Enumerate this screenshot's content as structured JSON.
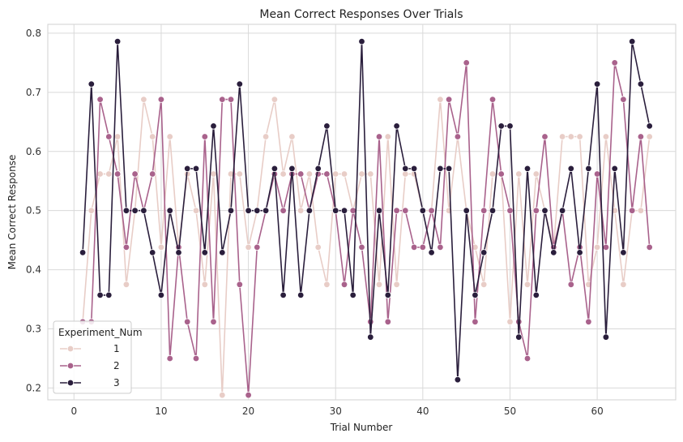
{
  "chart_data": {
    "type": "line",
    "title": "Mean Correct Responses Over Trials",
    "xlabel": "Trial Number",
    "ylabel": "Mean Correct Response",
    "xlim": [
      -3,
      69
    ],
    "ylim": [
      0.18,
      0.815
    ],
    "xticks": [
      0,
      10,
      20,
      30,
      40,
      50,
      60
    ],
    "yticks": [
      0.2,
      0.3,
      0.4,
      0.5,
      0.6,
      0.7,
      0.8
    ],
    "grid": true,
    "legend": {
      "title": "Experiment_Num",
      "placement": "bottom-left"
    },
    "x": [
      1,
      2,
      3,
      4,
      5,
      6,
      7,
      8,
      9,
      10,
      11,
      12,
      13,
      14,
      15,
      16,
      17,
      18,
      19,
      20,
      21,
      22,
      23,
      24,
      25,
      26,
      27,
      28,
      29,
      30,
      31,
      32,
      33,
      34,
      35,
      36,
      37,
      38,
      39,
      40,
      41,
      42,
      43,
      44,
      45,
      46,
      47,
      48,
      49,
      50,
      51,
      52,
      53,
      54,
      55,
      56,
      57,
      58,
      59,
      60,
      61,
      62,
      63,
      64,
      65,
      66
    ],
    "series": [
      {
        "name": "1",
        "color": "#e8cdc7",
        "values": [
          0.312,
          0.5,
          0.562,
          0.562,
          0.625,
          0.375,
          0.5,
          0.688,
          0.625,
          0.438,
          0.625,
          0.438,
          0.562,
          0.5,
          0.375,
          0.562,
          0.188,
          0.562,
          0.562,
          0.438,
          0.5,
          0.625,
          0.688,
          0.562,
          0.625,
          0.5,
          0.562,
          0.438,
          0.375,
          0.562,
          0.562,
          0.5,
          0.562,
          0.562,
          0.375,
          0.625,
          0.375,
          0.562,
          0.562,
          0.5,
          0.5,
          0.688,
          0.5,
          0.625,
          0.5,
          0.438,
          0.375,
          0.562,
          0.562,
          0.312,
          0.562,
          0.375,
          0.562,
          0.5,
          0.438,
          0.625,
          0.625,
          0.625,
          0.375,
          0.438,
          0.625,
          0.5,
          0.375,
          0.5,
          0.5,
          0.625
        ]
      },
      {
        "name": "2",
        "color": "#a9628c",
        "values": [
          0.312,
          0.312,
          0.688,
          0.625,
          0.562,
          0.438,
          0.562,
          0.5,
          0.562,
          0.688,
          0.25,
          0.438,
          0.312,
          0.25,
          0.625,
          0.312,
          0.688,
          0.688,
          0.375,
          0.188,
          0.438,
          0.5,
          0.562,
          0.5,
          0.562,
          0.562,
          0.5,
          0.562,
          0.562,
          0.5,
          0.375,
          0.5,
          0.438,
          0.312,
          0.625,
          0.312,
          0.5,
          0.5,
          0.438,
          0.438,
          0.5,
          0.438,
          0.688,
          0.625,
          0.75,
          0.312,
          0.5,
          0.688,
          0.562,
          0.5,
          0.312,
          0.25,
          0.5,
          0.625,
          0.438,
          0.5,
          0.375,
          0.438,
          0.312,
          0.562,
          0.438,
          0.75,
          0.688,
          0.5,
          0.625,
          0.438
        ]
      },
      {
        "name": "3",
        "color": "#2a1e3c",
        "values": [
          0.429,
          0.714,
          0.357,
          0.357,
          0.786,
          0.5,
          0.5,
          0.5,
          0.429,
          0.357,
          0.5,
          0.429,
          0.571,
          0.571,
          0.429,
          0.643,
          0.429,
          0.5,
          0.714,
          0.5,
          0.5,
          0.5,
          0.571,
          0.357,
          0.571,
          0.357,
          0.5,
          0.571,
          0.643,
          0.5,
          0.5,
          0.357,
          0.786,
          0.286,
          0.5,
          0.357,
          0.643,
          0.571,
          0.571,
          0.5,
          0.429,
          0.571,
          0.571,
          0.214,
          0.5,
          0.357,
          0.429,
          0.5,
          0.643,
          0.643,
          0.286,
          0.571,
          0.357,
          0.5,
          0.429,
          0.5,
          0.571,
          0.429,
          0.571,
          0.714,
          0.286,
          0.571,
          0.429,
          0.786,
          0.714,
          0.643
        ]
      }
    ]
  }
}
